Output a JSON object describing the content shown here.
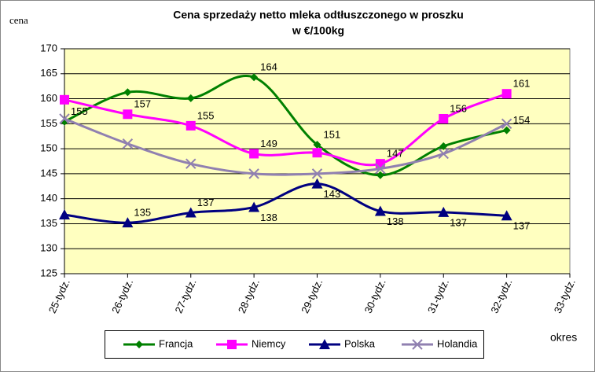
{
  "chart_data": {
    "type": "line",
    "title": [
      "Cena sprzedaży netto mleka odtłuszczonego w proszku",
      "w €/100kg"
    ],
    "y_label": "cena",
    "x_label": "okres",
    "categories": [
      "25-tydz.",
      "26-tydz.",
      "27-tydz.",
      "28-tydz.",
      "29-tydz.",
      "30-tydz.",
      "31-tydz.",
      "32-tydz.",
      "33-tydz."
    ],
    "series": [
      {
        "name": "Francja",
        "color": "#008000",
        "marker": "diamond",
        "values": [
          155.4,
          161.3,
          160.1,
          164.3,
          150.8,
          144.7,
          150.5,
          153.7,
          null
        ],
        "value_labels": [
          "155",
          null,
          null,
          "164",
          "151",
          null,
          null,
          "154",
          null
        ]
      },
      {
        "name": "Niemcy",
        "color": "#ff00ff",
        "marker": "square",
        "values": [
          159.8,
          156.9,
          154.6,
          149.0,
          149.2,
          147.0,
          156.0,
          161.0,
          null
        ],
        "value_labels": [
          null,
          "157",
          "155",
          "149",
          null,
          "147",
          "156",
          "161",
          null
        ]
      },
      {
        "name": "Polska",
        "color": "#000080",
        "marker": "triangle",
        "values": [
          136.8,
          135.2,
          137.2,
          138.3,
          143.0,
          137.5,
          137.3,
          136.6,
          null
        ],
        "value_labels": [
          null,
          "135",
          "137",
          "138",
          "143",
          "138",
          "137",
          "137",
          null
        ]
      },
      {
        "name": "Holandia",
        "color": "#9080b0",
        "marker": "x",
        "values": [
          156,
          151,
          147,
          145,
          145,
          146,
          149,
          155,
          null
        ]
      }
    ],
    "ylim": [
      125,
      170
    ],
    "yticks": [
      125,
      130,
      135,
      140,
      145,
      150,
      155,
      160,
      165,
      170
    ],
    "grid": true,
    "smooth": true
  }
}
